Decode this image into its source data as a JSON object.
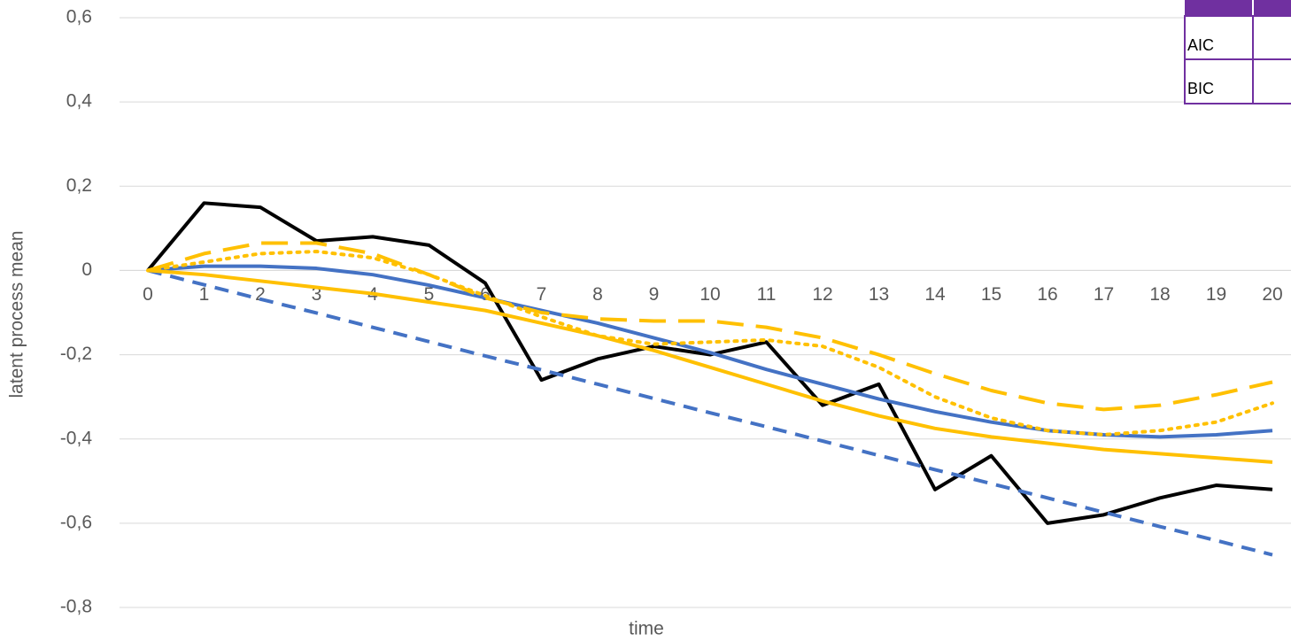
{
  "chart_data": {
    "type": "line",
    "xlabel": "time",
    "ylabel": "latent process mean",
    "x": [
      0,
      1,
      2,
      3,
      4,
      5,
      6,
      7,
      8,
      9,
      10,
      11,
      12,
      13,
      14,
      15,
      16,
      17,
      18,
      19,
      20
    ],
    "xticks": [
      0,
      1,
      2,
      3,
      4,
      5,
      6,
      7,
      8,
      9,
      10,
      11,
      12,
      13,
      14,
      15,
      16,
      17,
      18,
      19,
      20
    ],
    "xlim": [
      0,
      20
    ],
    "ylim": [
      -0.8,
      0.6
    ],
    "yticks": [
      {
        "value": 0.6,
        "label": "0,6"
      },
      {
        "value": 0.4,
        "label": "0,4"
      },
      {
        "value": 0.2,
        "label": "0,2"
      },
      {
        "value": 0,
        "label": "0"
      },
      {
        "value": -0.2,
        "label": "-0,2"
      },
      {
        "value": -0.4,
        "label": "-0,4"
      },
      {
        "value": -0.6,
        "label": "-0,6"
      },
      {
        "value": -0.8,
        "label": "-0,8"
      }
    ],
    "grid": true,
    "series": [
      {
        "color": "#000000",
        "style": "solid",
        "values": [
          0,
          0.16,
          0.15,
          0.07,
          0.08,
          0.06,
          -0.03,
          -0.26,
          -0.21,
          -0.18,
          -0.2,
          -0.17,
          -0.32,
          -0.27,
          -0.52,
          -0.44,
          -0.6,
          -0.58,
          -0.54,
          -0.51,
          -0.52
        ]
      },
      {
        "color": "#4472c4",
        "style": "solid",
        "values": [
          0,
          0.01,
          0.01,
          0.005,
          -0.01,
          -0.035,
          -0.065,
          -0.095,
          -0.125,
          -0.16,
          -0.195,
          -0.235,
          -0.27,
          -0.305,
          -0.335,
          -0.36,
          -0.38,
          -0.39,
          -0.395,
          -0.39,
          -0.38
        ]
      },
      {
        "color": "#4472c4",
        "style": "dashed",
        "values": [
          0,
          -0.034,
          -0.068,
          -0.101,
          -0.135,
          -0.169,
          -0.203,
          -0.236,
          -0.27,
          -0.304,
          -0.338,
          -0.371,
          -0.405,
          -0.439,
          -0.473,
          -0.506,
          -0.54,
          -0.574,
          -0.608,
          -0.641,
          -0.675
        ]
      },
      {
        "color": "#ffc000",
        "style": "solid",
        "values": [
          0,
          -0.01,
          -0.025,
          -0.04,
          -0.055,
          -0.075,
          -0.095,
          -0.125,
          -0.155,
          -0.19,
          -0.23,
          -0.27,
          -0.31,
          -0.345,
          -0.375,
          -0.395,
          -0.41,
          -0.425,
          -0.435,
          -0.445,
          -0.455
        ]
      },
      {
        "color": "#ffc000",
        "style": "longdash",
        "values": [
          0,
          0.04,
          0.065,
          0.065,
          0.04,
          -0.01,
          -0.065,
          -0.1,
          -0.115,
          -0.12,
          -0.12,
          -0.135,
          -0.16,
          -0.2,
          -0.245,
          -0.285,
          -0.315,
          -0.33,
          -0.32,
          -0.295,
          -0.265
        ]
      },
      {
        "color": "#ffc000",
        "style": "dotted",
        "values": [
          0,
          0.02,
          0.04,
          0.045,
          0.03,
          -0.01,
          -0.06,
          -0.11,
          -0.155,
          -0.175,
          -0.17,
          -0.165,
          -0.18,
          -0.23,
          -0.3,
          -0.35,
          -0.38,
          -0.39,
          -0.38,
          -0.36,
          -0.315
        ]
      }
    ]
  },
  "table": {
    "rows": [
      "AIC",
      "BIC"
    ]
  }
}
